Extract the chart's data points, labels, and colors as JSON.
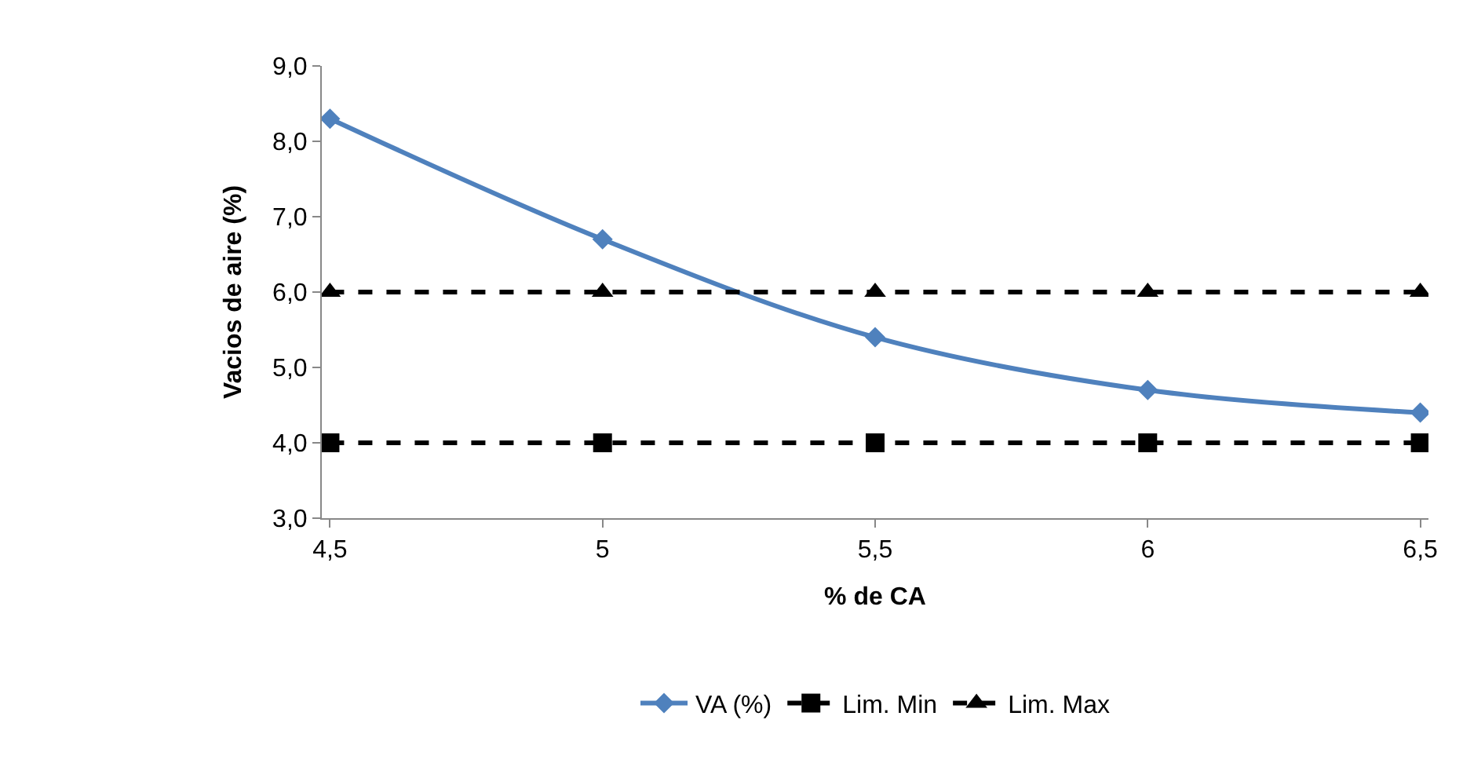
{
  "chart_data": {
    "type": "line",
    "xlabel": "% de CA",
    "ylabel": "Vacios de aire (%)",
    "categories": [
      "4,5",
      "5",
      "5,5",
      "6",
      "6,5"
    ],
    "series": [
      {
        "name": "VA (%)",
        "color": "#4f81bd",
        "values": [
          8.3,
          6.7,
          5.4,
          4.7,
          4.4
        ],
        "marker": "diamond",
        "line_style": "solid"
      },
      {
        "name": "Lim. Min",
        "color": "#000000",
        "values": [
          4.0,
          4.0,
          4.0,
          4.0,
          4.0
        ],
        "marker": "square",
        "line_style": "dashed"
      },
      {
        "name": "Lim. Max",
        "color": "#000000",
        "values": [
          6.0,
          6.0,
          6.0,
          6.0,
          6.0
        ],
        "marker": "triangle",
        "line_style": "dashed"
      }
    ],
    "ylim": [
      3.0,
      9.0
    ],
    "yticks": [
      {
        "value": 3,
        "label": "3,0"
      },
      {
        "value": 4,
        "label": "4,0"
      },
      {
        "value": 5,
        "label": "5,0"
      },
      {
        "value": 6,
        "label": "6,0"
      },
      {
        "value": 7,
        "label": "7,0"
      },
      {
        "value": 8,
        "label": "8,0"
      },
      {
        "value": 9,
        "label": "9,0"
      }
    ],
    "legend": "bottom"
  }
}
